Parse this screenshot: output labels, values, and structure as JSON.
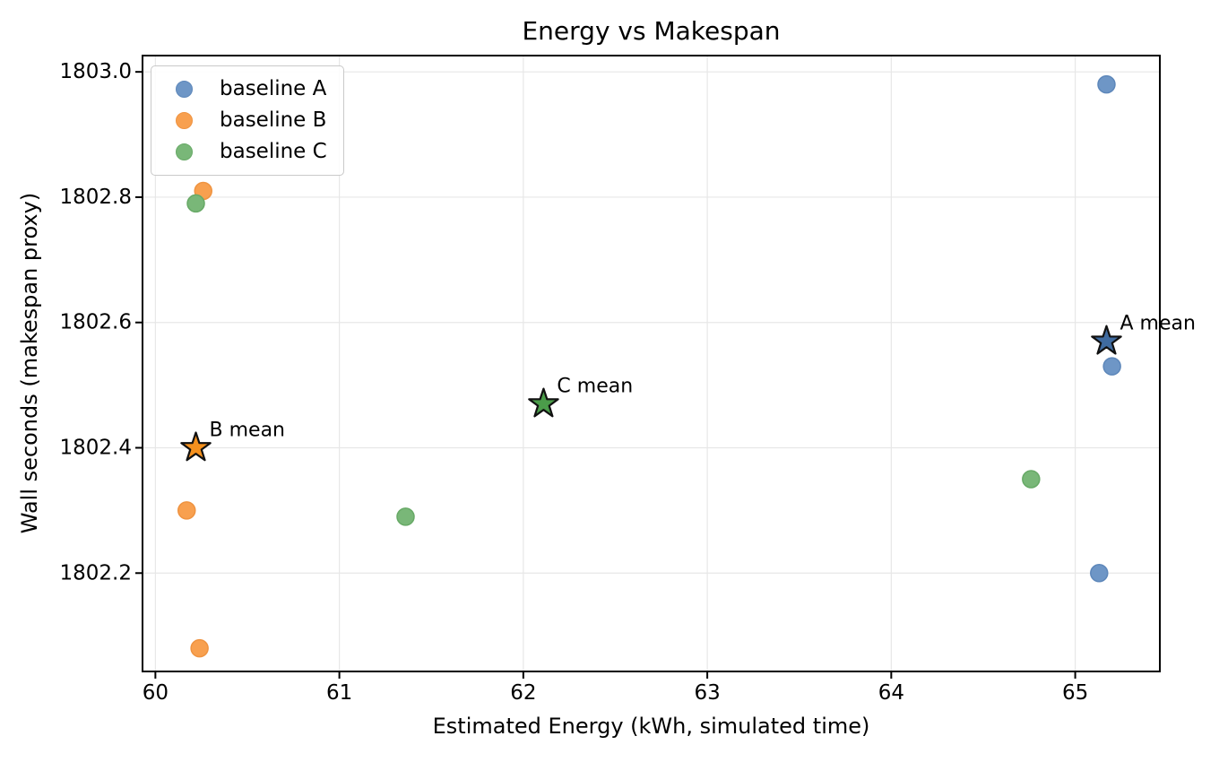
{
  "chart_data": {
    "type": "scatter",
    "title": "Energy vs Makespan",
    "xlabel": "Estimated Energy (kWh, simulated time)",
    "ylabel": "Wall seconds (makespan proxy)",
    "xlim": [
      59.93,
      65.46
    ],
    "ylim": [
      1802.043,
      1803.026
    ],
    "grid": true,
    "legend_position": "upper-left",
    "xticks": [
      {
        "v": 60,
        "label": "60"
      },
      {
        "v": 61,
        "label": "61"
      },
      {
        "v": 62,
        "label": "62"
      },
      {
        "v": 63,
        "label": "63"
      },
      {
        "v": 64,
        "label": "64"
      },
      {
        "v": 65,
        "label": "65"
      }
    ],
    "yticks": [
      {
        "v": 1803.0,
        "label": "1803.0"
      },
      {
        "v": 1802.8,
        "label": "1802.8"
      },
      {
        "v": 1802.6,
        "label": "1802.6"
      },
      {
        "v": 1802.4,
        "label": "1802.4"
      },
      {
        "v": 1802.2,
        "label": "1802.2"
      }
    ],
    "series": [
      {
        "name": "baseline A",
        "fill": "#6e96c6",
        "stroke": "#5d87ba",
        "points": [
          [
            65.17,
            1802.98
          ],
          [
            65.2,
            1802.53
          ],
          [
            65.13,
            1802.2
          ]
        ]
      },
      {
        "name": "baseline B",
        "fill": "#f8a04f",
        "stroke": "#ef9340",
        "points": [
          [
            60.26,
            1802.81
          ],
          [
            60.17,
            1802.3
          ],
          [
            60.24,
            1802.08
          ]
        ]
      },
      {
        "name": "baseline C",
        "fill": "#79b778",
        "stroke": "#67a966",
        "points": [
          [
            60.22,
            1802.79
          ],
          [
            61.36,
            1802.29
          ],
          [
            64.76,
            1802.35
          ]
        ]
      }
    ],
    "means": [
      {
        "label": "A mean",
        "x": 65.17,
        "y": 1802.57,
        "fill": "#3f6ba0"
      },
      {
        "label": "B mean",
        "x": 60.22,
        "y": 1802.4,
        "fill": "#f5911e"
      },
      {
        "label": "C mean",
        "x": 62.11,
        "y": 1802.47,
        "fill": "#4b9d4a"
      }
    ],
    "colors": {
      "spine": "#000000",
      "grid": "#e7e7e7",
      "tick": "#000000",
      "star_edge": "#111111"
    }
  }
}
